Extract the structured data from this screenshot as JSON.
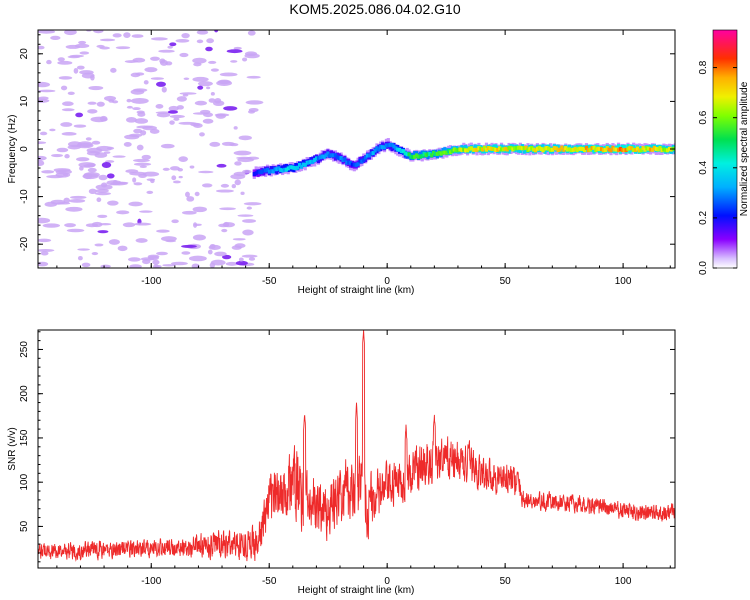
{
  "title": "KOM5.2025.086.04.02.G10",
  "colors": {
    "snr_line": "#ee2a2a",
    "noise_blob": "#c9a4f4"
  },
  "chart_data": [
    {
      "type": "heatmap",
      "xlabel": "Height of straight line (km)",
      "ylabel": "Frequency (Hz)",
      "xlim": [
        -148,
        122
      ],
      "ylim": [
        -25,
        25
      ],
      "xticks": [
        -100,
        -50,
        0,
        50,
        100
      ],
      "yticks": [
        -20,
        -10,
        0,
        10,
        20
      ],
      "colorbar": {
        "label": "Normalized spectral amplitude",
        "range": [
          0,
          0.95
        ],
        "ticks": [
          "0.0",
          "0.2",
          "0.4",
          "0.6",
          "0.8"
        ],
        "colormap": "rainbow"
      },
      "signal_track": {
        "x": [
          -57,
          -50,
          -40,
          -32,
          -26,
          -20,
          -15,
          -10,
          -5,
          0,
          5,
          10,
          20,
          30,
          40,
          60,
          80,
          100,
          122
        ],
        "frequency": [
          -5,
          -4.5,
          -4,
          -2.5,
          -1,
          -2,
          -3.5,
          -2,
          0,
          1,
          -0.5,
          -1.5,
          -1,
          0,
          0,
          0,
          0,
          0,
          0
        ],
        "amplitude": [
          0.2,
          0.35,
          0.4,
          0.35,
          0.3,
          0.3,
          0.25,
          0.3,
          0.35,
          0.3,
          0.4,
          0.55,
          0.55,
          0.65,
          0.75,
          0.7,
          0.75,
          0.8,
          0.7
        ]
      }
    },
    {
      "type": "line",
      "xlabel": "Height of straight line (km)",
      "ylabel": "SNR (v/v)",
      "xlim": [
        -148,
        122
      ],
      "ylim": [
        3,
        272
      ],
      "xticks": [
        -100,
        -50,
        0,
        50,
        100
      ],
      "yticks": [
        50,
        100,
        150,
        200,
        250
      ],
      "envelope": {
        "x": [
          -148,
          -120,
          -90,
          -70,
          -55,
          -50,
          -45,
          -40,
          -35,
          -30,
          -25,
          -20,
          -15,
          -12,
          -10,
          -8,
          -5,
          0,
          5,
          10,
          15,
          20,
          25,
          30,
          35,
          40,
          50,
          55,
          58,
          65,
          80,
          90,
          100,
          110,
          122
        ],
        "mean": [
          22,
          24,
          26,
          30,
          32,
          75,
          92,
          100,
          78,
          72,
          70,
          82,
          95,
          90,
          100,
          70,
          82,
          95,
          100,
          110,
          118,
          122,
          125,
          123,
          120,
          110,
          105,
          100,
          80,
          78,
          75,
          72,
          68,
          65,
          66
        ],
        "amplitude": [
          10,
          12,
          12,
          18,
          22,
          35,
          40,
          50,
          45,
          40,
          35,
          40,
          45,
          45,
          50,
          40,
          35,
          30,
          28,
          28,
          30,
          30,
          28,
          28,
          25,
          22,
          22,
          20,
          12,
          12,
          12,
          12,
          12,
          12,
          12
        ]
      },
      "spikes": [
        {
          "x": -35,
          "y": 178
        },
        {
          "x": -13,
          "y": 190
        },
        {
          "x": -10,
          "y": 272
        },
        {
          "x": 8,
          "y": 165
        },
        {
          "x": 20,
          "y": 176
        }
      ]
    }
  ]
}
